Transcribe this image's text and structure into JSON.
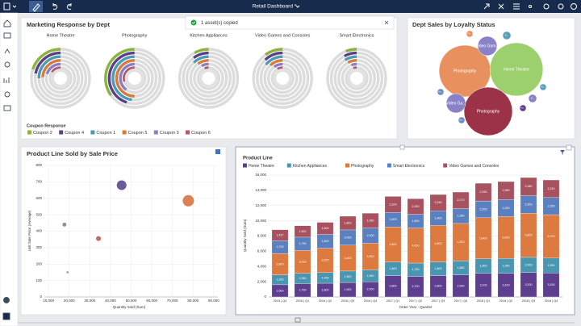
{
  "app": {
    "title": "Retail Dashboard *",
    "toast": "1 asset(s) copied"
  },
  "chart_data": [
    {
      "type": "radial",
      "title": "Marketing Response by Dept",
      "legend_title": "Coupon Response",
      "max": 100,
      "categories": [
        "Home Theatre",
        "Photography",
        "Kitchen Appliances",
        "Video Games and Consoles",
        "Smart Electronics"
      ],
      "series": [
        {
          "name": "Coupon 2",
          "color": "#8bb43c",
          "values": [
            20,
            35,
            8,
            10,
            6
          ]
        },
        {
          "name": "Coupon 4",
          "color": "#5b3f8c",
          "values": [
            22,
            45,
            10,
            12,
            8
          ]
        },
        {
          "name": "Coupon 1",
          "color": "#4a9bb5",
          "values": [
            25,
            48,
            12,
            14,
            9
          ]
        },
        {
          "name": "Coupon 5",
          "color": "#d97a3a",
          "values": [
            24,
            50,
            10,
            12,
            8
          ]
        },
        {
          "name": "Coupon 3",
          "color": "#8b7fc4",
          "values": [
            20,
            40,
            8,
            10,
            6
          ]
        },
        {
          "name": "Coupon 6",
          "color": "#b05a6e",
          "values": [
            15,
            30,
            6,
            8,
            5
          ]
        }
      ]
    },
    {
      "type": "pack",
      "title": "Dept Sales by Loyalty Status",
      "labels": [
        "Photography",
        "Home Theatre",
        "Photography",
        "Video Gam...",
        "Video Ga...",
        "Vi...",
        "Ki...",
        "Sm...",
        "Sm...",
        "Ki...",
        "Ho...",
        "Ph..."
      ],
      "values": [
        1000,
        1060,
        880,
        140,
        140,
        25,
        25,
        16,
        16,
        16,
        16,
        16
      ],
      "colors": [
        "#e8915f",
        "#9bd06c",
        "#9c3247",
        "#8a82c6",
        "#8a82c6",
        "#8a82c6",
        "#5aa0b8",
        "#6b8cc6",
        "#6b8cc6",
        "#5aa0b8",
        "#5e3f8f",
        "#e8915f"
      ]
    },
    {
      "type": "scatter",
      "title": "Product Line Sold by Sale Price",
      "x_label": "Quantity Sold (Sum)",
      "y_label": "Unit Sale Price (Average)",
      "x": [
        17700,
        19200,
        34200,
        45400,
        77700
      ],
      "values": [
        440,
        150,
        355,
        680,
        585
      ],
      "sizes": [
        6,
        2,
        9,
        36,
        49
      ],
      "colors": [
        "#9e8a88",
        "#b0a8a8",
        "#c06a60",
        "#6a5a9a",
        "#de8055"
      ],
      "xlim": [
        8000,
        92000
      ],
      "ylim": [
        0,
        800
      ],
      "grid": true,
      "xticks": [
        {
          "value": 10000,
          "label": "10,000"
        },
        {
          "value": 20000,
          "label": "20,000"
        },
        {
          "value": 30000,
          "label": "30,000"
        },
        {
          "value": 40000,
          "label": "40,000"
        },
        {
          "value": 50000,
          "label": "50,000"
        },
        {
          "value": 60000,
          "label": "60,000"
        },
        {
          "value": 70000,
          "label": "70,000"
        },
        {
          "value": 80000,
          "label": "80,000"
        },
        {
          "value": 90000,
          "label": "90,000"
        }
      ],
      "yticks": [
        0,
        100,
        200,
        300,
        400,
        500,
        600,
        700,
        800
      ]
    },
    {
      "type": "bar",
      "stacked": true,
      "title": "Product Line",
      "x_label": "Order Year - Quarter",
      "y_label": "Quantity Sold (Sum)",
      "categories": [
        "2015 | Q4",
        "2016 | Q1",
        "2016 | Q2",
        "2016 | Q3",
        "2016 | Q4",
        "2017 | Q1",
        "2017 | Q2",
        "2017 | Q3",
        "2017 | Q4",
        "2018 | Q1",
        "2018 | Q2",
        "2018 | Q3",
        "2018 | Q4"
      ],
      "ylim": [
        0,
        16000
      ],
      "grid": true,
      "yticks": [
        0,
        {
          "value": 2000,
          "label": "2,000"
        },
        {
          "value": 4000,
          "label": "4,000"
        },
        {
          "value": 6000,
          "label": "6,000"
        },
        {
          "value": 8000,
          "label": "8,000"
        },
        {
          "value": 10000,
          "label": "10,000"
        },
        {
          "value": 12000,
          "label": "12,000"
        },
        {
          "value": 14000,
          "label": "14,000"
        },
        {
          "value": 16000,
          "label": "16,000"
        }
      ],
      "series": [
        {
          "name": "Home Theatre",
          "color": "#5e3f8f",
          "values": [
            1600,
            1750,
            1800,
            1900,
            2000,
            2800,
            2700,
            2800,
            2900,
            3100,
            3100,
            3200,
            3150
          ],
          "value_labels": [
            "1,600",
            "1,750",
            "1,800",
            "1,900",
            "2,000",
            "2,800",
            "2,700",
            "2,800",
            "2,900",
            "3,100",
            "3,100",
            "3,200",
            "3,150"
          ]
        },
        {
          "name": "Kitchen Appliances",
          "color": "#4a96b0",
          "values": [
            1300,
            1350,
            1400,
            1500,
            1550,
            1800,
            1750,
            1800,
            1850,
            1900,
            1950,
            2000,
            1950
          ],
          "value_labels": [
            "1,300",
            "1,350",
            "1,400",
            "1,500",
            "1,550",
            "1,800",
            "1,750",
            "1,800",
            "1,850",
            "1,900",
            "1,950",
            "2,000",
            "1,950"
          ]
        },
        {
          "name": "Photography",
          "color": "#dc7a3f",
          "values": [
            2800,
            3000,
            3200,
            3400,
            3500,
            4600,
            4600,
            4800,
            4900,
            5400,
            5500,
            5800,
            5700
          ],
          "value_labels": [
            "2,800",
            "3,000",
            "3,200",
            "3,400",
            "3,500",
            "4,600",
            "4,600",
            "4,800",
            "4,900",
            "5,400",
            "5,500",
            "5,800",
            "5,700"
          ]
        },
        {
          "name": "Smart Electronics",
          "color": "#5a80c0",
          "values": [
            1700,
            1750,
            1800,
            2000,
            2000,
            1900,
            1800,
            1900,
            1950,
            2200,
            2250,
            2300,
            2250
          ],
          "value_labels": [
            "1,700",
            "1,750",
            "1,800",
            "2,000",
            "2,000",
            "1,900",
            "1,800",
            "1,900",
            "1,950",
            "2,200",
            "2,250",
            "2,300",
            "2,250"
          ]
        },
        {
          "name": "Video Games and Consoles",
          "color": "#a8525f",
          "values": [
            1427,
            1500,
            1600,
            1800,
            1950,
            2100,
            2050,
            2150,
            2170,
            2330,
            2350,
            2380,
            2310
          ],
          "value_labels": [
            "1,427",
            "1,500",
            "1,600",
            "1,800",
            "1,950",
            "2,100",
            "2,050",
            "2,150",
            "2,170",
            "2,330",
            "2,350",
            "2,380",
            "2,310"
          ]
        }
      ]
    }
  ]
}
